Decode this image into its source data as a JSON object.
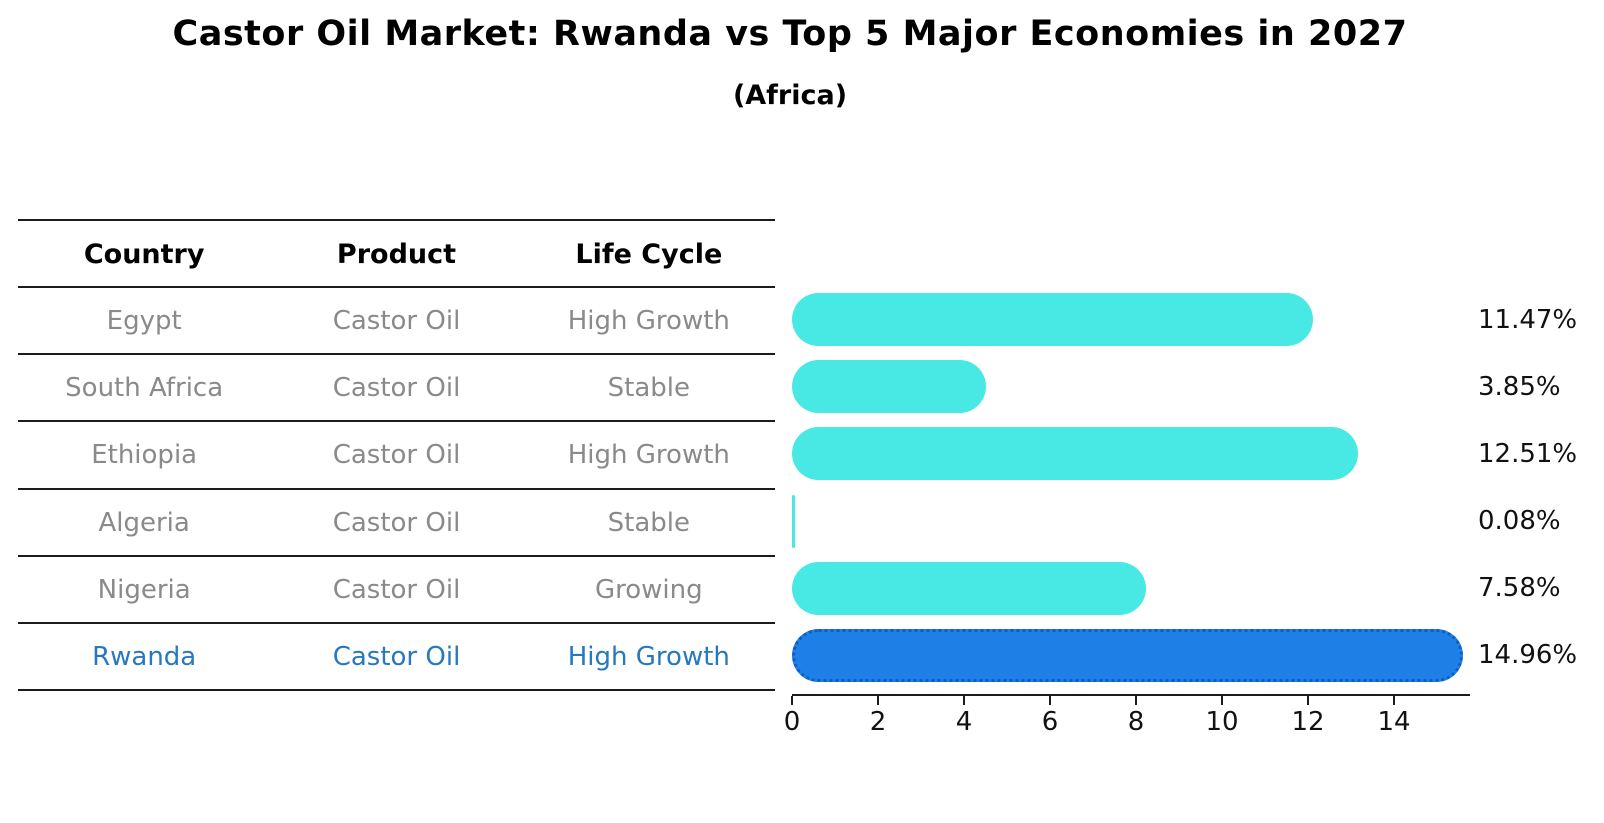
{
  "title": "Castor Oil Market: Rwanda vs Top 5 Major Economies in 2027",
  "subtitle": "(Africa)",
  "table": {
    "headers": [
      "Country",
      "Product",
      "Life Cycle"
    ],
    "rows": [
      {
        "country": "Egypt",
        "product": "Castor Oil",
        "life_cycle": "High Growth",
        "highlight": false
      },
      {
        "country": "South Africa",
        "product": "Castor Oil",
        "life_cycle": "Stable",
        "highlight": false
      },
      {
        "country": "Ethiopia",
        "product": "Castor Oil",
        "life_cycle": "High Growth",
        "highlight": false
      },
      {
        "country": "Algeria",
        "product": "Castor Oil",
        "life_cycle": "Stable",
        "highlight": false
      },
      {
        "country": "Nigeria",
        "product": "Castor Oil",
        "life_cycle": "Growing",
        "highlight": false
      },
      {
        "country": "Rwanda",
        "product": "Castor Oil",
        "life_cycle": "High Growth",
        "highlight": true
      }
    ]
  },
  "chart_data": {
    "type": "bar",
    "orientation": "horizontal",
    "title": "Castor Oil Market: Rwanda vs Top 5 Major Economies in 2027",
    "subtitle": "(Africa)",
    "categories": [
      "Egypt",
      "South Africa",
      "Ethiopia",
      "Algeria",
      "Nigeria",
      "Rwanda"
    ],
    "values": [
      11.47,
      3.85,
      12.51,
      0.08,
      7.58,
      14.96
    ],
    "value_labels": [
      "11.47%",
      "3.85%",
      "12.51%",
      "0.08%",
      "7.58%",
      "14.96%"
    ],
    "highlight_index": 5,
    "x_ticks": [
      0,
      2,
      4,
      6,
      8,
      10,
      12,
      14
    ],
    "x_tick_labels": [
      "0",
      "2",
      "4",
      "6",
      "8",
      "10",
      "12",
      "14"
    ],
    "xlim": [
      0,
      15.7
    ],
    "grid": false,
    "legend": "none",
    "bar_color": "#48e8e5",
    "highlight_bar_color": "#1e7fe6",
    "highlight_border_color": "#0d5ec4",
    "highlight_text_color": "#2878be",
    "row_text_color": "#8a8a8a",
    "axis_color": "#1c1c1c"
  }
}
